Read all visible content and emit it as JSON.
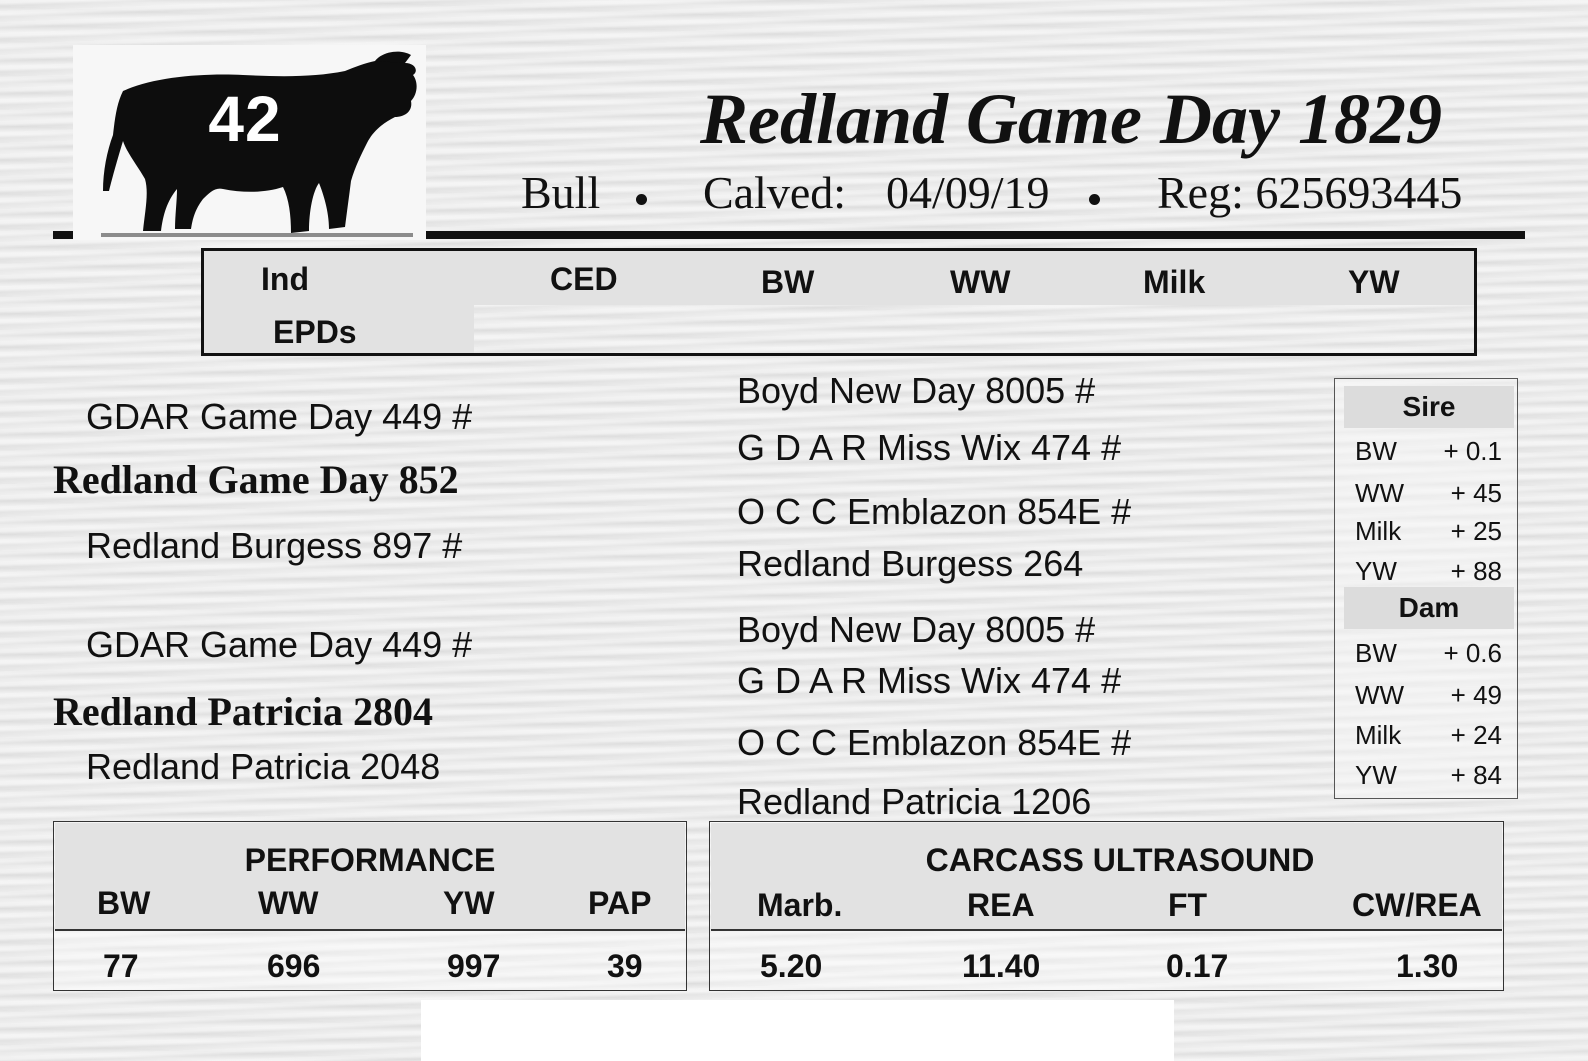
{
  "header": {
    "lot_number": "42",
    "animal_name": "Redland Game Day 1829",
    "sex": "Bull",
    "calved_label": "Calved:",
    "calved_date": "04/09/19",
    "reg": "Reg: 625693445",
    "logo_icon": "bull-silhouette-icon"
  },
  "epd_header": {
    "row_label_1": "Ind",
    "row_label_2": "EPDs",
    "columns": [
      "CED",
      "BW",
      "WW",
      "Milk",
      "YW"
    ]
  },
  "pedigree": {
    "sire": "Redland Game Day 852",
    "sire_sire": "GDAR Game Day 449 #",
    "sire_dam": "Redland Burgess 897 #",
    "dam": "Redland Patricia 2804",
    "dam_sire": "GDAR Game Day 449 #",
    "dam_dam": "Redland Patricia 2048",
    "great_grandparents": [
      "Boyd New Day 8005 #",
      "G D A R Miss Wix 474 #",
      "O C C Emblazon 854E #",
      "Redland Burgess 264",
      "Boyd New Day 8005 #",
      "G D A R Miss Wix 474 #",
      "O C C Emblazon 854E #",
      "Redland Patricia 1206"
    ]
  },
  "side_epds": {
    "sire_title": "Sire",
    "sire": [
      {
        "label": "BW",
        "value": "+ 0.1"
      },
      {
        "label": "WW",
        "value": "+ 45"
      },
      {
        "label": "Milk",
        "value": "+ 25"
      },
      {
        "label": "YW",
        "value": "+ 88"
      }
    ],
    "dam_title": "Dam",
    "dam": [
      {
        "label": "BW",
        "value": "+ 0.6"
      },
      {
        "label": "WW",
        "value": "+ 49"
      },
      {
        "label": "Milk",
        "value": "+ 24"
      },
      {
        "label": "YW",
        "value": "+ 84"
      }
    ]
  },
  "performance": {
    "title": "PERFORMANCE",
    "headers": [
      "BW",
      "WW",
      "YW",
      "PAP"
    ],
    "values": [
      "77",
      "696",
      "997",
      "39"
    ]
  },
  "carcass": {
    "title": "CARCASS ULTRASOUND",
    "headers": [
      "Marb.",
      "REA",
      "FT",
      "CW/REA"
    ],
    "values": [
      "5.20",
      "11.40",
      "0.17",
      "1.30"
    ]
  }
}
